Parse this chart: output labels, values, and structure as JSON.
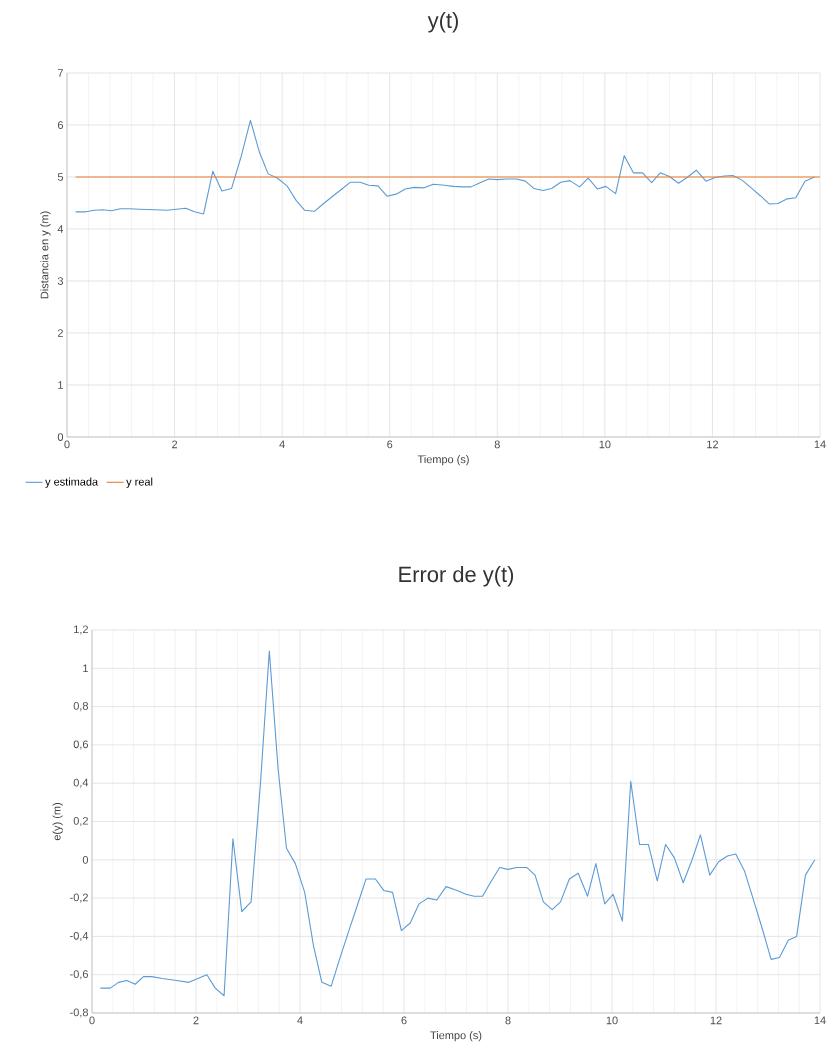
{
  "chart_data": [
    {
      "type": "line",
      "title": "y(t)",
      "xlabel": "Tiempo (s)",
      "ylabel": "Distancia en y (m)",
      "xlim": [
        0,
        14
      ],
      "ylim": [
        0,
        7
      ],
      "xticks": [
        0,
        2,
        4,
        6,
        8,
        10,
        12,
        14
      ],
      "yticks": [
        0,
        1,
        2,
        3,
        4,
        5,
        6,
        7
      ],
      "grid": true,
      "legend": "bottom left",
      "series": [
        {
          "name": "y estimada",
          "color": "#5b9bd5",
          "x": [
            0.16,
            0.35,
            0.51,
            0.67,
            0.83,
            0.99,
            1.15,
            1.35,
            1.63,
            1.86,
            2.21,
            2.37,
            2.54,
            2.71,
            2.88,
            3.06,
            3.24,
            3.41,
            3.58,
            3.74,
            3.91,
            4.09,
            4.26,
            4.42,
            4.6,
            4.76,
            4.94,
            5.1,
            5.27,
            5.45,
            5.61,
            5.78,
            5.95,
            6.12,
            6.29,
            6.46,
            6.63,
            6.81,
            7.02,
            7.19,
            7.35,
            7.51,
            7.66,
            7.84,
            8.0,
            8.17,
            8.36,
            8.52,
            8.68,
            8.85,
            9.01,
            9.18,
            9.35,
            9.53,
            9.69,
            9.86,
            10.02,
            10.2,
            10.36,
            10.53,
            10.7,
            10.87,
            11.03,
            11.2,
            11.37,
            11.54,
            11.7,
            11.88,
            12.05,
            12.22,
            12.38,
            12.55,
            12.71,
            12.89,
            13.06,
            13.22,
            13.39,
            13.55,
            13.72,
            13.9
          ],
          "values": [
            4.33,
            4.33,
            4.36,
            4.37,
            4.35,
            4.39,
            4.39,
            4.38,
            4.37,
            4.36,
            4.4,
            4.33,
            4.29,
            5.11,
            4.73,
            4.78,
            5.4,
            6.09,
            5.47,
            5.06,
            4.98,
            4.83,
            4.55,
            4.36,
            4.34,
            4.48,
            4.63,
            4.76,
            4.9,
            4.9,
            4.84,
            4.83,
            4.63,
            4.67,
            4.77,
            4.8,
            4.79,
            4.86,
            4.84,
            4.82,
            4.81,
            4.81,
            4.88,
            4.96,
            4.95,
            4.96,
            4.96,
            4.92,
            4.78,
            4.74,
            4.78,
            4.9,
            4.93,
            4.81,
            4.98,
            4.77,
            4.82,
            4.68,
            5.41,
            5.08,
            5.08,
            4.89,
            5.08,
            5.01,
            4.88,
            5.0,
            5.13,
            4.92,
            4.99,
            5.02,
            5.03,
            4.94,
            4.8,
            4.64,
            4.48,
            4.49,
            4.58,
            4.6,
            4.92,
            5.0
          ]
        },
        {
          "name": "y real",
          "color": "#ed7d31",
          "x": [
            0.16,
            14
          ],
          "values": [
            5,
            5
          ]
        }
      ]
    },
    {
      "type": "line",
      "title": "Error de y(t)",
      "xlabel": "Tiempo (s)",
      "ylabel": "e(y) (m)",
      "xlim": [
        0,
        14
      ],
      "ylim": [
        -0.8,
        1.2
      ],
      "xticks": [
        0,
        2,
        4,
        6,
        8,
        10,
        12,
        14
      ],
      "yticks": [
        {
          "value": -0.8,
          "label": "-0,8"
        },
        {
          "value": -0.6,
          "label": "-0,6"
        },
        {
          "value": -0.4,
          "label": "-0,4"
        },
        {
          "value": -0.2,
          "label": "-0,2"
        },
        0,
        {
          "value": 0.2,
          "label": "0,2"
        },
        {
          "value": 0.4,
          "label": "0,4"
        },
        {
          "value": 0.6,
          "label": "0,6"
        },
        {
          "value": 0.8,
          "label": "0,8"
        },
        1,
        {
          "value": 1.2,
          "label": "1,2"
        }
      ],
      "grid": true,
      "series": [
        {
          "color": "#5b9bd5",
          "x": [
            0.16,
            0.35,
            0.51,
            0.67,
            0.83,
            0.99,
            1.15,
            1.35,
            1.63,
            1.86,
            2.21,
            2.37,
            2.54,
            2.71,
            2.88,
            3.06,
            3.24,
            3.41,
            3.58,
            3.74,
            3.91,
            4.09,
            4.26,
            4.42,
            4.6,
            4.76,
            4.94,
            5.1,
            5.27,
            5.45,
            5.61,
            5.78,
            5.95,
            6.12,
            6.29,
            6.46,
            6.63,
            6.81,
            7.02,
            7.19,
            7.35,
            7.51,
            7.66,
            7.84,
            8.0,
            8.17,
            8.36,
            8.52,
            8.68,
            8.85,
            9.01,
            9.18,
            9.35,
            9.53,
            9.69,
            9.86,
            10.02,
            10.2,
            10.36,
            10.53,
            10.7,
            10.87,
            11.03,
            11.2,
            11.37,
            11.54,
            11.7,
            11.88,
            12.05,
            12.22,
            12.38,
            12.55,
            12.71,
            12.89,
            13.06,
            13.22,
            13.39,
            13.55,
            13.72,
            13.9
          ],
          "values": [
            -0.67,
            -0.67,
            -0.64,
            -0.63,
            -0.65,
            -0.61,
            -0.61,
            -0.62,
            -0.63,
            -0.64,
            -0.6,
            -0.67,
            -0.71,
            0.11,
            -0.27,
            -0.22,
            0.4,
            1.09,
            0.47,
            0.06,
            -0.02,
            -0.17,
            -0.45,
            -0.64,
            -0.66,
            -0.52,
            -0.37,
            -0.24,
            -0.1,
            -0.1,
            -0.16,
            -0.17,
            -0.37,
            -0.33,
            -0.23,
            -0.2,
            -0.21,
            -0.14,
            -0.16,
            -0.18,
            -0.19,
            -0.19,
            -0.12,
            -0.04,
            -0.05,
            -0.04,
            -0.04,
            -0.08,
            -0.22,
            -0.26,
            -0.22,
            -0.1,
            -0.07,
            -0.19,
            -0.02,
            -0.23,
            -0.18,
            -0.32,
            0.41,
            0.08,
            0.08,
            -0.11,
            0.08,
            0.01,
            -0.12,
            0.0,
            0.13,
            -0.08,
            -0.01,
            0.02,
            0.03,
            -0.06,
            -0.2,
            -0.36,
            -0.52,
            -0.51,
            -0.42,
            -0.4,
            -0.08,
            0.0
          ]
        }
      ]
    }
  ]
}
